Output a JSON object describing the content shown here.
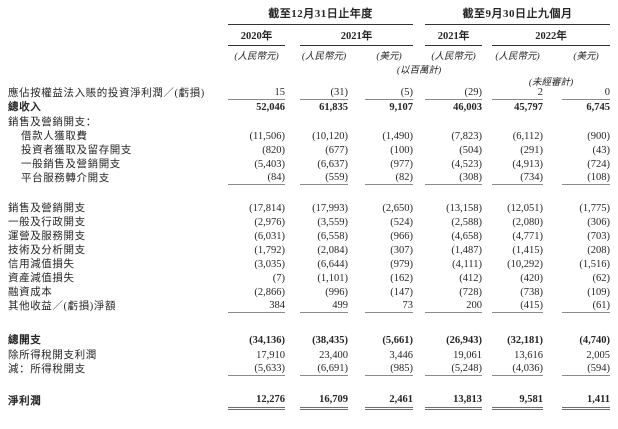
{
  "table": {
    "header": {
      "period_annual": "截至12月31日止年度",
      "period_nine_months": "截至9月30日止九個月",
      "years": [
        "2020年",
        "2021年",
        "2021年",
        "2022年"
      ],
      "currency_labels": [
        "(人民幣元)",
        "(人民幣元)",
        "(美元)",
        "(人民幣元)",
        "(人民幣元)",
        "(美元)"
      ],
      "unit_note": "(以百萬計)",
      "unaudited_note": "(未經審計)"
    },
    "rows": [
      {
        "label": "應佔按權益法入賬的投資淨利潤／(虧損)",
        "values": [
          "15",
          "(31)",
          "(5)",
          "(29)",
          "2",
          "0"
        ],
        "underline": "single"
      },
      {
        "label": "總收入",
        "bold": true,
        "values": [
          "52,046",
          "61,835",
          "9,107",
          "46,003",
          "45,797",
          "6,745"
        ]
      },
      {
        "label": "銷售及營銷開支：",
        "values": null
      },
      {
        "label": "借款人獲取費",
        "indent": true,
        "values": [
          "(11,506)",
          "(10,120)",
          "(1,490)",
          "(7,823)",
          "(6,112)",
          "(900)"
        ]
      },
      {
        "label": "投資者獲取及留存開支",
        "indent": true,
        "values": [
          "(820)",
          "(677)",
          "(100)",
          "(504)",
          "(291)",
          "(43)"
        ]
      },
      {
        "label": "一般銷售及營銷開支",
        "indent": true,
        "values": [
          "(5,403)",
          "(6,637)",
          "(977)",
          "(4,523)",
          "(4,913)",
          "(724)"
        ]
      },
      {
        "label": "平台服務轉介開支",
        "indent": true,
        "values": [
          "(84)",
          "(559)",
          "(82)",
          "(308)",
          "(734)",
          "(108)"
        ],
        "underline": "single"
      },
      {
        "label": "銷售及營銷開支",
        "gap_before": 16,
        "values": [
          "(17,814)",
          "(17,993)",
          "(2,650)",
          "(13,158)",
          "(12,051)",
          "(1,775)"
        ]
      },
      {
        "label": "一般及行政開支",
        "values": [
          "(2,976)",
          "(3,559)",
          "(524)",
          "(2,588)",
          "(2,080)",
          "(306)"
        ]
      },
      {
        "label": "運營及服務開支",
        "values": [
          "(6,031)",
          "(6,558)",
          "(966)",
          "(4,658)",
          "(4,771)",
          "(703)"
        ]
      },
      {
        "label": "技術及分析開支",
        "values": [
          "(1,792)",
          "(2,084)",
          "(307)",
          "(1,487)",
          "(1,415)",
          "(208)"
        ]
      },
      {
        "label": "信用減值損失",
        "values": [
          "(3,035)",
          "(6,644)",
          "(979)",
          "(4,111)",
          "(10,292)",
          "(1,516)"
        ]
      },
      {
        "label": "資產減值損失",
        "values": [
          "(7)",
          "(1,101)",
          "(162)",
          "(412)",
          "(420)",
          "(62)"
        ]
      },
      {
        "label": "融資成本",
        "values": [
          "(2,866)",
          "(996)",
          "(147)",
          "(728)",
          "(738)",
          "(109)"
        ]
      },
      {
        "label": "其他收益／(虧損)淨額",
        "values": [
          "384",
          "499",
          "73",
          "200",
          "(415)",
          "(61)"
        ],
        "underline": "single"
      },
      {
        "label": "總開支",
        "bold": true,
        "gap_before": 20,
        "values": [
          "(34,136)",
          "(38,435)",
          "(5,661)",
          "(26,943)",
          "(32,181)",
          "(4,740)"
        ]
      },
      {
        "label": "除所得稅開支利潤",
        "values": [
          "17,910",
          "23,400",
          "3,446",
          "19,061",
          "13,616",
          "2,005"
        ]
      },
      {
        "label": "減：所得稅開支",
        "values": [
          "(5,633)",
          "(6,691)",
          "(985)",
          "(5,248)",
          "(4,036)",
          "(594)"
        ],
        "underline": "single"
      },
      {
        "label": "淨利潤",
        "bold": true,
        "gap_before": 16,
        "values": [
          "12,276",
          "16,709",
          "2,461",
          "13,813",
          "9,581",
          "1,411"
        ],
        "underline": "double"
      }
    ]
  },
  "colors": {
    "text": "#262626",
    "header_rule": "#333333",
    "data_rule": "#8a8a8a",
    "background": "#ffffff"
  }
}
